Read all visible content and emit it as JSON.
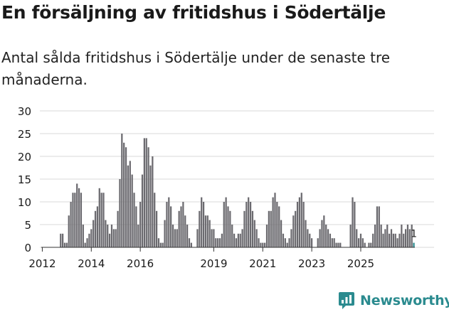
{
  "title": "En försäljning av fritidshus i Södertälje",
  "subtitle": "Antal sålda fritidshus i Södertälje under de senaste tre månaderna.",
  "brand": "Newsworthy",
  "colors": {
    "bar": "#6b6a6f",
    "highlight": "#2b8b8f",
    "grid": "#d9d9d9",
    "text": "#1a1a1a"
  },
  "chart_data": {
    "type": "bar",
    "title": "En försäljning av fritidshus i Södertälje",
    "subtitle": "Antal sålda fritidshus i Södertälje under de senaste tre månaderna.",
    "xlabel": "",
    "ylabel": "",
    "ylim": [
      0,
      30
    ],
    "yticks": [
      0,
      5,
      10,
      15,
      20,
      25,
      30
    ],
    "xticks": [
      "2012",
      "2014",
      "2016",
      "2019",
      "2021",
      "2023",
      "2025"
    ],
    "series": [
      {
        "name": "Antal sålda fritidshus (rullande tre månader)",
        "start": "2012-01",
        "frequency": "monthly",
        "values": [
          0,
          0,
          0,
          0,
          0,
          0,
          0,
          0,
          0,
          3,
          3,
          1,
          1,
          7,
          10,
          12,
          12,
          14,
          13,
          12,
          5,
          1,
          2,
          3,
          4,
          6,
          8,
          9,
          13,
          12,
          12,
          6,
          5,
          3,
          5,
          4,
          4,
          8,
          15,
          25,
          23,
          22,
          18,
          19,
          16,
          12,
          9,
          5,
          10,
          16,
          24,
          24,
          22,
          18,
          20,
          12,
          8,
          2,
          1,
          1,
          6,
          10,
          11,
          9,
          5,
          4,
          4,
          8,
          9,
          10,
          7,
          5,
          2,
          1,
          0,
          0,
          4,
          8,
          11,
          10,
          7,
          7,
          6,
          4,
          4,
          2,
          2,
          2,
          3,
          10,
          11,
          9,
          8,
          5,
          3,
          2,
          3,
          3,
          4,
          8,
          10,
          11,
          10,
          8,
          6,
          4,
          2,
          1,
          1,
          1,
          5,
          8,
          8,
          11,
          12,
          10,
          9,
          6,
          3,
          2,
          1,
          2,
          4,
          7,
          8,
          10,
          11,
          12,
          10,
          6,
          4,
          3,
          2,
          0,
          0,
          2,
          4,
          6,
          7,
          5,
          4,
          3,
          2,
          2,
          1,
          1,
          1,
          0,
          0,
          0,
          0,
          5,
          11,
          10,
          4,
          2,
          3,
          2,
          1,
          0,
          1,
          1,
          3,
          5,
          9,
          9,
          5,
          3,
          4,
          5,
          3,
          4,
          3,
          3,
          2,
          3,
          5,
          3,
          4,
          5,
          4,
          5,
          1
        ],
        "last_label": "1"
      }
    ]
  }
}
